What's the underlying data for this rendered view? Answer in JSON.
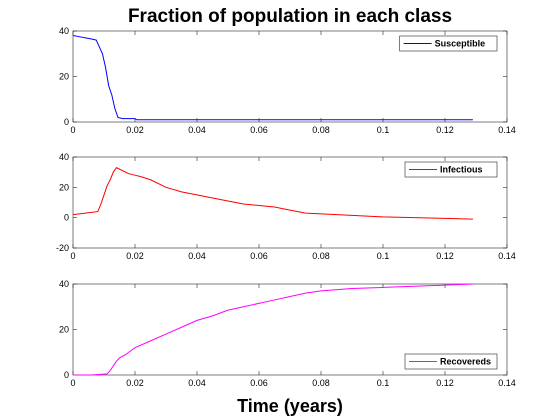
{
  "figure": {
    "title": "Fraction of population in each class",
    "xlabel": "Time (years)"
  },
  "chart_data": [
    {
      "type": "line",
      "title": "",
      "xlabel": "",
      "ylabel": "",
      "xlim": [
        0,
        0.14
      ],
      "ylim": [
        0,
        40
      ],
      "xticks": [
        0,
        0.02,
        0.04,
        0.06,
        0.08,
        0.1,
        0.12,
        0.14
      ],
      "xtick_labels": [
        "0",
        "0.02",
        "0.04",
        "0.06",
        "0.08",
        "0.1",
        "0.12",
        "0.14"
      ],
      "yticks": [
        0,
        20,
        40
      ],
      "ytick_labels": [
        "0",
        "20",
        "40"
      ],
      "legend_position": "top-right",
      "grid": false,
      "series": [
        {
          "name": "Susceptible",
          "color": "#0000ff",
          "x": [
            0,
            0.002,
            0.004,
            0.006,
            0.0075,
            0.0085,
            0.0095,
            0.0105,
            0.0115,
            0.0125,
            0.0135,
            0.0145,
            0.016,
            0.018,
            0.02,
            0.0205,
            0.04,
            0.08,
            0.129
          ],
          "y": [
            38,
            37.5,
            37,
            36.5,
            36,
            33,
            30,
            24,
            16,
            12,
            6,
            2,
            1.5,
            1.5,
            1.5,
            1,
            1,
            1,
            1
          ]
        }
      ]
    },
    {
      "type": "line",
      "title": "",
      "xlabel": "",
      "ylabel": "",
      "xlim": [
        0,
        0.14
      ],
      "ylim": [
        -20,
        40
      ],
      "xticks": [
        0,
        0.02,
        0.04,
        0.06,
        0.08,
        0.1,
        0.12,
        0.14
      ],
      "xtick_labels": [
        "0",
        "0.02",
        "0.04",
        "0.06",
        "0.08",
        "0.1",
        "0.12",
        "0.14"
      ],
      "yticks": [
        -20,
        0,
        20,
        40
      ],
      "ytick_labels": [
        "-20",
        "0",
        "20",
        "40"
      ],
      "legend_position": "top-right",
      "grid": false,
      "series": [
        {
          "name": "Infectious",
          "color": "#ff0000",
          "x": [
            0,
            0.004,
            0.008,
            0.009,
            0.01,
            0.011,
            0.012,
            0.013,
            0.014,
            0.015,
            0.016,
            0.018,
            0.02,
            0.022,
            0.025,
            0.03,
            0.035,
            0.04,
            0.045,
            0.05,
            0.055,
            0.06,
            0.065,
            0.07,
            0.075,
            0.08,
            0.09,
            0.1,
            0.11,
            0.12,
            0.129
          ],
          "y": [
            2,
            3,
            4,
            9,
            15,
            21,
            25,
            30,
            33,
            32,
            31,
            29,
            28,
            27,
            25,
            20,
            17,
            15,
            13,
            11,
            9,
            8,
            7,
            5,
            3,
            2.5,
            1.5,
            0.5,
            0,
            -0.5,
            -1
          ]
        }
      ]
    },
    {
      "type": "line",
      "title": "",
      "xlabel": "",
      "ylabel": "",
      "xlim": [
        0,
        0.14
      ],
      "ylim": [
        0,
        40
      ],
      "xticks": [
        0,
        0.02,
        0.04,
        0.06,
        0.08,
        0.1,
        0.12,
        0.14
      ],
      "xtick_labels": [
        "0",
        "0.02",
        "0.04",
        "0.06",
        "0.08",
        "0.1",
        "0.12",
        "0.14"
      ],
      "yticks": [
        0,
        20,
        40
      ],
      "ytick_labels": [
        "0",
        "20",
        "40"
      ],
      "legend_position": "bottom-right",
      "grid": false,
      "series": [
        {
          "name": "Recovereds",
          "color": "#ff00ff",
          "x": [
            0,
            0.006,
            0.011,
            0.012,
            0.013,
            0.014,
            0.015,
            0.017,
            0.02,
            0.025,
            0.03,
            0.035,
            0.04,
            0.045,
            0.05,
            0.055,
            0.06,
            0.065,
            0.07,
            0.075,
            0.08,
            0.09,
            0.1,
            0.11,
            0.12,
            0.129
          ],
          "y": [
            0,
            0,
            0.5,
            2,
            4,
            6,
            7.5,
            9,
            12,
            15,
            18,
            21,
            24,
            26,
            28.5,
            30,
            31.5,
            33,
            34.5,
            36,
            37,
            38,
            38.5,
            39,
            39.5,
            40
          ]
        }
      ]
    }
  ]
}
